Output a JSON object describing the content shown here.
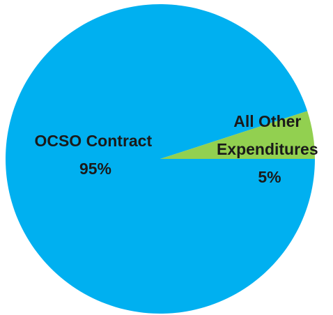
{
  "chart_data": {
    "type": "pie",
    "title": "",
    "legend": "none",
    "slices": [
      {
        "label_lines": [
          "OCSO Contract",
          "95%"
        ],
        "category": "OCSO Contract",
        "value": 95,
        "value_label": "95%",
        "color": "#00b0f0"
      },
      {
        "label_lines": [
          "All Other",
          "Expenditures",
          "5%"
        ],
        "category": "All Other Expenditures",
        "value": 5,
        "value_label": "5%",
        "color": "#92d050"
      }
    ]
  }
}
